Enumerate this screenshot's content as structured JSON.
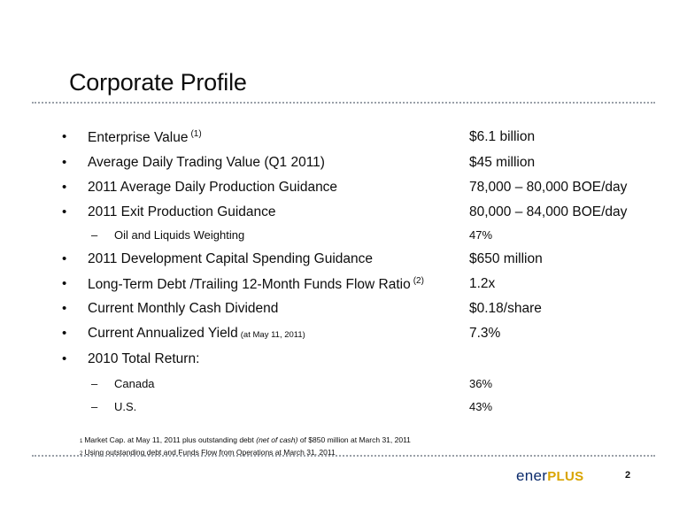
{
  "slide": {
    "title": "Corporate Profile",
    "page_number": "2"
  },
  "bullet_char": "•",
  "dash_char": "–",
  "items": [
    {
      "label": "Enterprise Value",
      "sup": "(1)",
      "value": "$6.1 billion"
    },
    {
      "label": "Average Daily Trading Value (Q1 2011)",
      "value": "$45 million"
    },
    {
      "label": "2011 Average Daily Production Guidance",
      "value": "78,000 – 80,000 BOE/day"
    },
    {
      "label": "2011 Exit Production Guidance",
      "value": "80,000 – 84,000 BOE/day"
    },
    {
      "label": "Oil and Liquids Weighting",
      "value": "47%"
    },
    {
      "label": "2011 Development Capital Spending Guidance",
      "value": "$650 million"
    },
    {
      "label": "Long-Term Debt /Trailing 12-Month Funds Flow Ratio",
      "sup": "(2)",
      "value": "1.2x"
    },
    {
      "label": "Current Monthly Cash Dividend",
      "value": "$0.18/share"
    },
    {
      "label": "Current Annualized Yield",
      "note": "(at May 11, 2011)",
      "value": "7.3%"
    },
    {
      "label": "2010 Total Return:"
    },
    {
      "label": "Canada",
      "value": "36%"
    },
    {
      "label": "U.S.",
      "value": "43%"
    }
  ],
  "footnotes": [
    {
      "num": "1",
      "before": "Market Cap. at May 11, 2011 plus outstanding debt ",
      "italic": "(net of cash)",
      "after": " of $850 million at March 31, 2011"
    },
    {
      "num": "2",
      "text": "Using outstanding debt and Funds Flow from Operations at March 31, 2011"
    }
  ],
  "logo": {
    "part1": "ener",
    "part2": "PLUS",
    "color1": "#0a2a6b",
    "color2": "#d9a400"
  }
}
